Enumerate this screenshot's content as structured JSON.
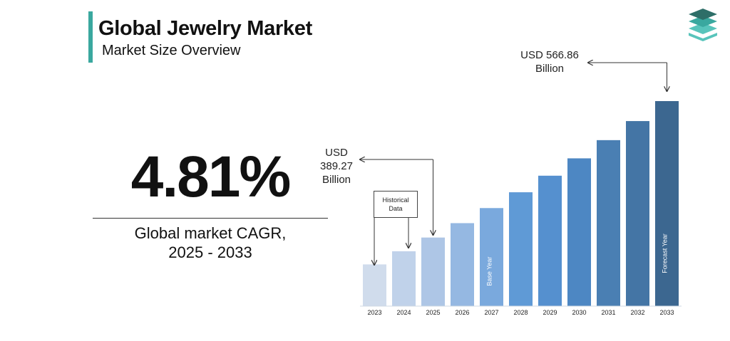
{
  "header": {
    "title": "Global Jewelry Market",
    "subtitle": "Market Size Overview",
    "accent_color": "#3aa89f"
  },
  "logo": {
    "icon": "stacked-layers-icon",
    "colors": [
      "#2e6e68",
      "#3aa89f",
      "#58c4bb"
    ]
  },
  "cagr": {
    "value": "4.81%",
    "label_line1": "Global market CAGR,",
    "label_line2": "2025 - 2033"
  },
  "callouts": {
    "start": {
      "line1": "USD",
      "line2": "389.27",
      "line3": "Billion"
    },
    "end": {
      "line1": "USD 566.86",
      "line2": "Billion"
    },
    "historical_box": {
      "line1": "Historical",
      "line2": "Data"
    }
  },
  "chart_data": {
    "type": "bar",
    "categories": [
      "2023",
      "2024",
      "2025",
      "2026",
      "2027",
      "2028",
      "2029",
      "2030",
      "2031",
      "2032",
      "2033"
    ],
    "values": [
      354.3,
      371.4,
      389.27,
      407.99,
      427.62,
      448.19,
      469.75,
      492.34,
      516.03,
      540.85,
      566.86
    ],
    "bar_labels": {
      "2027": "Base Year",
      "2033": "Forecast Year"
    },
    "colors": [
      "#d0dcec",
      "#c0d2ea",
      "#aec6e6",
      "#95b8e2",
      "#7aa9dd",
      "#5f9ad6",
      "#5590cf",
      "#4d87c3",
      "#4a7fb3",
      "#4475a5",
      "#3c6790"
    ],
    "title": "",
    "xlabel": "",
    "ylabel": "",
    "ylim": [
      300,
      580
    ],
    "grid": false
  }
}
